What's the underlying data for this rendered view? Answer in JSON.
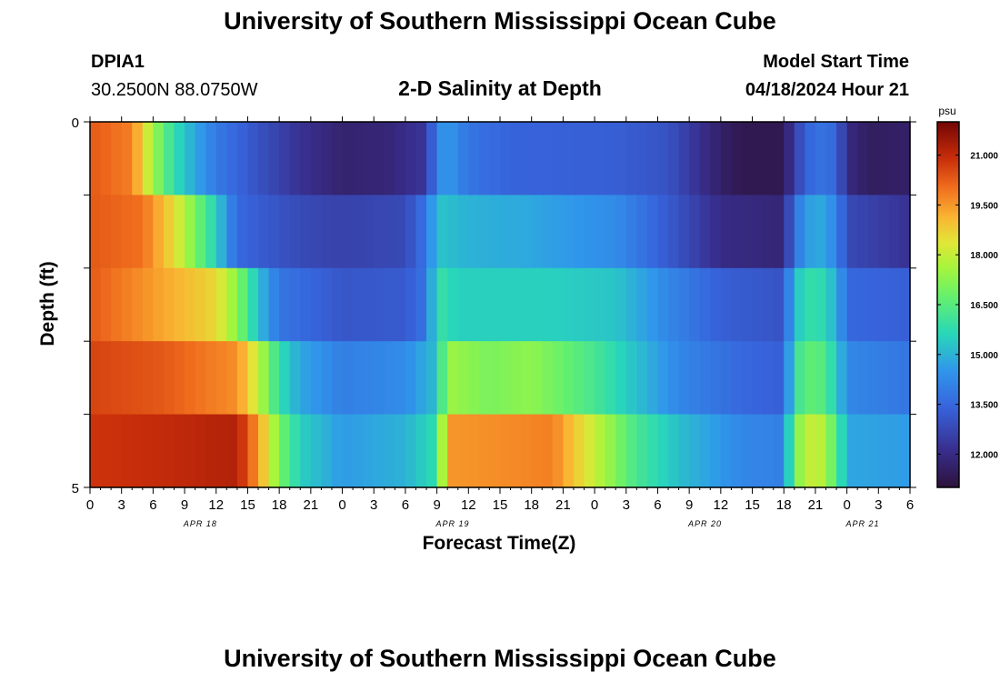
{
  "header": {
    "title": "University of Southern Mississippi Ocean Cube",
    "station_id": "DPIA1",
    "coordinates": "30.2500N  88.0750W",
    "plot_title": "2-D Salinity at Depth",
    "model_start_label": "Model Start Time",
    "model_start_value": "04/18/2024 Hour 21"
  },
  "footer": {
    "title": "University of Southern Mississippi Ocean Cube"
  },
  "chart_data": {
    "type": "heatmap",
    "title": "2-D Salinity at Depth",
    "xlabel": "Forecast Time(Z)",
    "ylabel": "Depth (ft)",
    "ylim": [
      0,
      5
    ],
    "y_tick_labels": [
      "0",
      "5"
    ],
    "x_tick_labels": [
      "0",
      "3",
      "6",
      "9",
      "12",
      "15",
      "18",
      "21",
      "0",
      "3",
      "6",
      "9",
      "12",
      "15",
      "18",
      "21",
      "0",
      "3",
      "6",
      "9",
      "12",
      "15",
      "18",
      "21",
      "0",
      "3",
      "6"
    ],
    "date_labels": [
      {
        "label": "APR 18",
        "hour_index": 10.5
      },
      {
        "label": "APR 19",
        "hour_index": 34.5
      },
      {
        "label": "APR 20",
        "hour_index": 58.5
      },
      {
        "label": "APR 21",
        "hour_index": 73.5
      }
    ],
    "hours": 78,
    "depth_layers": 5,
    "colorbar": {
      "unit": "psu",
      "min": 11.0,
      "max": 22.0,
      "tick_labels": [
        "21.000",
        "19.500",
        "18.000",
        "16.500",
        "15.000",
        "13.500",
        "12.000"
      ],
      "tick_values": [
        21.0,
        19.5,
        18.0,
        16.5,
        15.0,
        13.5,
        12.0
      ]
    },
    "salinity_keyframes": {
      "note": "approximate salinity (psu) per depth layer (top to bottom) at forecast hour index; values linearly interpolated between keyframes",
      "layers": [
        [
          [
            0,
            20.3
          ],
          [
            4,
            19.8
          ],
          [
            6,
            17.5
          ],
          [
            8,
            15.8
          ],
          [
            10,
            14.8
          ],
          [
            12,
            13.9
          ],
          [
            16,
            13.0
          ],
          [
            20,
            12.2
          ],
          [
            24,
            11.7
          ],
          [
            28,
            11.8
          ],
          [
            32,
            12.3
          ],
          [
            33,
            14.2
          ],
          [
            34,
            14.6
          ],
          [
            36,
            13.8
          ],
          [
            40,
            13.4
          ],
          [
            50,
            13.3
          ],
          [
            55,
            13.0
          ],
          [
            60,
            11.6
          ],
          [
            62,
            11.3
          ],
          [
            66,
            11.3
          ],
          [
            67,
            12.6
          ],
          [
            69,
            13.8
          ],
          [
            71,
            13.5
          ],
          [
            72,
            12.0
          ],
          [
            74,
            11.5
          ],
          [
            78,
            11.6
          ]
        ],
        [
          [
            0,
            20.3
          ],
          [
            5,
            20.0
          ],
          [
            8,
            18.5
          ],
          [
            10,
            17.0
          ],
          [
            12,
            15.5
          ],
          [
            14,
            13.5
          ],
          [
            20,
            12.8
          ],
          [
            24,
            12.6
          ],
          [
            30,
            12.8
          ],
          [
            32,
            13.8
          ],
          [
            33,
            15.3
          ],
          [
            36,
            15.0
          ],
          [
            42,
            14.8
          ],
          [
            50,
            14.3
          ],
          [
            55,
            13.2
          ],
          [
            60,
            12.0
          ],
          [
            66,
            11.8
          ],
          [
            67,
            13.8
          ],
          [
            69,
            15.0
          ],
          [
            71,
            14.2
          ],
          [
            72,
            12.8
          ],
          [
            78,
            12.2
          ]
        ],
        [
          [
            0,
            20.3
          ],
          [
            7,
            19.3
          ],
          [
            12,
            18.6
          ],
          [
            14,
            17.2
          ],
          [
            16,
            15.2
          ],
          [
            18,
            13.8
          ],
          [
            24,
            13.1
          ],
          [
            30,
            13.2
          ],
          [
            32,
            13.8
          ],
          [
            33,
            16.0
          ],
          [
            35,
            15.5
          ],
          [
            44,
            15.5
          ],
          [
            50,
            15.3
          ],
          [
            55,
            14.2
          ],
          [
            60,
            13.3
          ],
          [
            66,
            13.0
          ],
          [
            67,
            15.3
          ],
          [
            69,
            16.0
          ],
          [
            71,
            15.0
          ],
          [
            72,
            13.5
          ],
          [
            78,
            13.3
          ]
        ],
        [
          [
            0,
            20.6
          ],
          [
            7,
            20.3
          ],
          [
            14,
            19.6
          ],
          [
            16,
            18.0
          ],
          [
            18,
            15.8
          ],
          [
            20,
            14.8
          ],
          [
            24,
            14.0
          ],
          [
            30,
            14.3
          ],
          [
            33,
            15.2
          ],
          [
            34,
            17.5
          ],
          [
            38,
            17.0
          ],
          [
            42,
            17.3
          ],
          [
            48,
            16.2
          ],
          [
            52,
            15.2
          ],
          [
            56,
            14.2
          ],
          [
            62,
            13.5
          ],
          [
            66,
            13.3
          ],
          [
            67,
            16.0
          ],
          [
            69,
            16.8
          ],
          [
            71,
            15.5
          ],
          [
            72,
            14.2
          ],
          [
            78,
            13.8
          ]
        ],
        [
          [
            0,
            20.8
          ],
          [
            8,
            21.0
          ],
          [
            14,
            21.2
          ],
          [
            16,
            19.5
          ],
          [
            18,
            17.0
          ],
          [
            20,
            15.5
          ],
          [
            24,
            14.6
          ],
          [
            30,
            15.0
          ],
          [
            33,
            15.8
          ],
          [
            34,
            19.5
          ],
          [
            38,
            19.6
          ],
          [
            44,
            19.8
          ],
          [
            48,
            18.0
          ],
          [
            52,
            16.2
          ],
          [
            56,
            15.2
          ],
          [
            62,
            14.2
          ],
          [
            66,
            14.0
          ],
          [
            67,
            17.0
          ],
          [
            69,
            18.3
          ],
          [
            71,
            16.5
          ],
          [
            72,
            14.8
          ],
          [
            78,
            14.6
          ]
        ]
      ]
    }
  }
}
